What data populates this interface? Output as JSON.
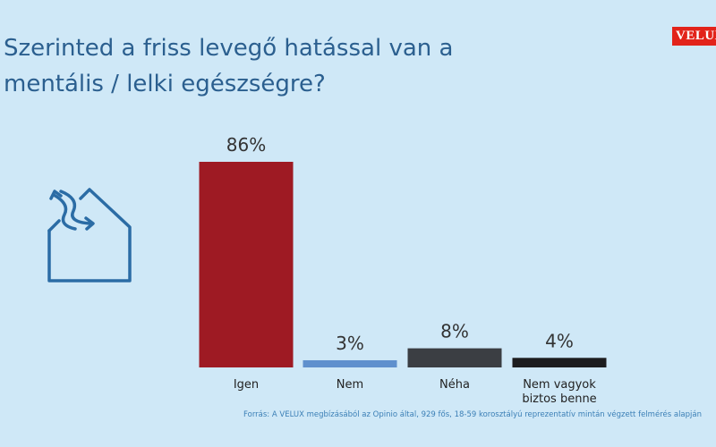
{
  "chart_data": {
    "type": "bar",
    "title": "Szerinted a friss levegő hatással van a mentális / lelki egészségre?",
    "logo": "VELUX",
    "categories": [
      "Igen",
      "Nem",
      "Néha",
      "Nem vagyok biztos benne"
    ],
    "values": [
      86,
      3,
      8,
      4
    ],
    "value_labels": [
      "86%",
      "3%",
      "8%",
      "4%"
    ],
    "colors": [
      "#9e1a23",
      "#5f90cd",
      "#3b3e43",
      "#1d1d1f"
    ],
    "source": "Forrás: A VELUX megbízásából az Opinio által, 929 fős, 18-59 korosztályú reprezentatív mintán végzett felmérés alapján"
  }
}
